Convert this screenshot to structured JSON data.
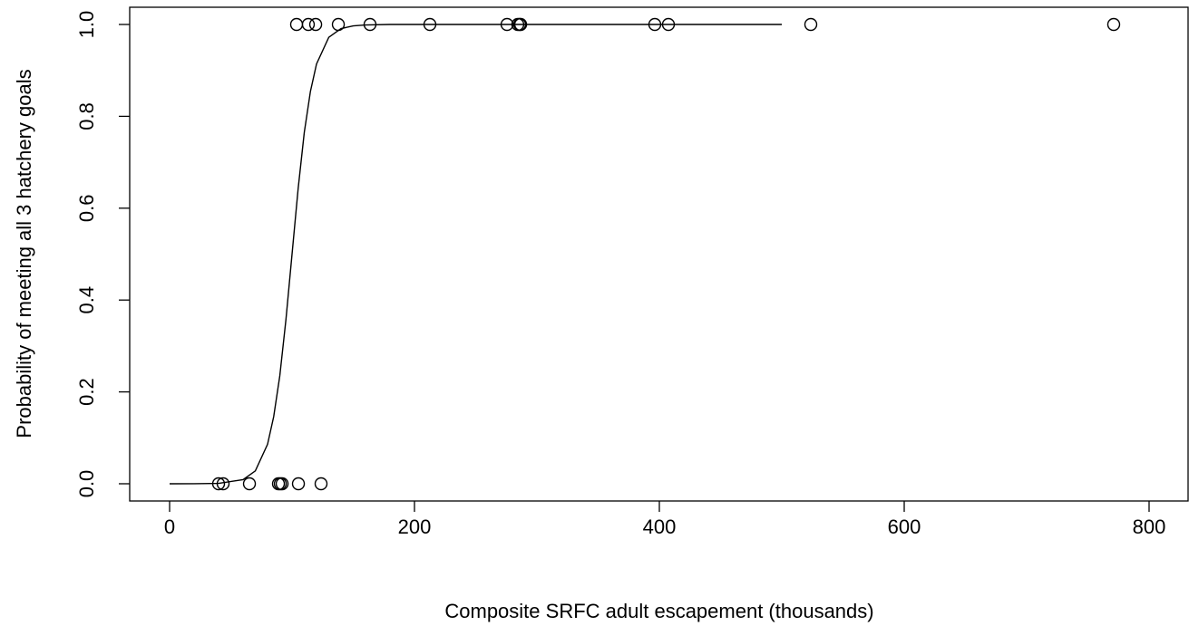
{
  "chart_data": {
    "type": "scatter",
    "xlabel": "Composite SRFC adult escapement (thousands)",
    "ylabel": "Probability of meeting all 3 hatchery goals",
    "xlim": [
      -32.6,
      832.6
    ],
    "ylim": [
      -0.0375,
      1.0375
    ],
    "xticks": [
      0,
      200,
      400,
      600,
      800
    ],
    "yticks": [
      {
        "value": 0,
        "label": "0.0"
      },
      0.2,
      0.4,
      0.6,
      0.8,
      {
        "value": 1,
        "label": "1.0"
      }
    ],
    "color": "#000000",
    "series": [
      {
        "x": [
          103.7,
          113.3,
          119.3,
          137.8,
          163.7,
          212.6,
          275.6,
          284.4,
          285.9,
          286.7,
          396.3,
          407.4,
          523.7,
          771.1,
          40,
          43.7,
          65.2,
          88.9,
          90.4,
          91.9,
          105.2,
          123.7
        ],
        "values": [
          1,
          1,
          1,
          1,
          1,
          1,
          1,
          1,
          1,
          1,
          1,
          1,
          1,
          1,
          0,
          0,
          0,
          0,
          0,
          0,
          0,
          0
        ]
      }
    ],
    "curve": {
      "x": [
        0,
        20,
        40,
        60,
        70,
        80,
        85,
        90,
        95,
        100,
        105,
        110,
        115,
        120,
        130,
        140,
        150,
        160,
        180,
        200,
        300,
        400,
        500
      ],
      "values": [
        0,
        0.0001,
        0.0008,
        0.009,
        0.028,
        0.086,
        0.146,
        0.235,
        0.357,
        0.5,
        0.643,
        0.765,
        0.854,
        0.914,
        0.972,
        0.991,
        0.997,
        0.999,
        1,
        1,
        1,
        1,
        1
      ]
    }
  }
}
